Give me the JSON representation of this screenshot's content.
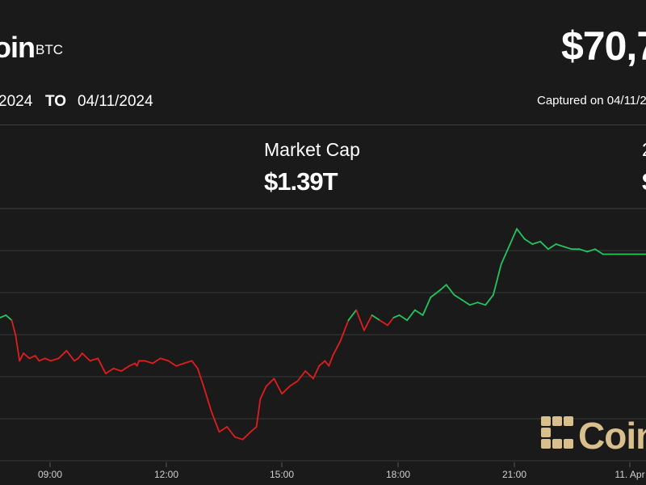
{
  "header": {
    "asset_name": "oin",
    "ticker": "BTC",
    "price": "$70,7",
    "date_from": "2024",
    "date_to_label": "TO",
    "date_to": "04/11/2024",
    "captured": "Captured on 04/11/20",
    "stat_label": "Market Cap",
    "stat_value": "$1.39T",
    "right_stat_label": "2",
    "right_stat_value": "$"
  },
  "logo": {
    "word": "Coin"
  },
  "colors": {
    "background": "#1a1a1a",
    "up": "#22c55e",
    "down": "#e11d1d",
    "grid": "#3a3a3a",
    "logo": "#d9bf8c"
  },
  "chart_data": {
    "type": "line",
    "title": "",
    "xlabel": "",
    "ylabel": "",
    "x_ticks": [
      "09:00",
      "12:00",
      "15:00",
      "18:00",
      "21:00",
      "11. Apr"
    ],
    "y_ticks_shown": false,
    "grid": true,
    "description_of_color": "segments colored green when above the period's opening level, red when below",
    "y_units": "relative price index (no axis labels shown)",
    "ylim": [
      0,
      100
    ],
    "x": [
      0,
      0.3,
      0.6,
      0.8,
      1.0,
      1.2,
      1.5,
      1.8,
      2.0,
      2.3,
      2.6,
      3.0,
      3.4,
      3.8,
      4.0,
      4.2,
      4.6,
      5.0,
      5.4,
      5.8,
      6.2,
      6.6,
      6.9,
      7.0,
      7.1,
      7.4,
      7.8,
      8.2,
      8.6,
      9.0,
      9.4,
      9.8,
      10.1,
      10.4,
      10.8,
      11.2,
      11.6,
      12.0,
      12.4,
      12.8,
      13.1,
      13.3,
      13.6,
      14.0,
      14.4,
      14.8,
      15.2,
      15.6,
      16.0,
      16.3,
      16.6,
      16.8,
      17.0,
      17.4,
      17.8,
      18.2,
      18.6,
      19.0,
      19.4,
      19.8,
      20.1,
      20.4,
      20.8,
      21.2,
      21.6,
      22.0,
      22.5,
      22.8,
      23.2,
      23.6,
      24.0,
      24.4,
      24.8,
      25.2,
      25.6,
      26.0,
      26.4,
      26.8,
      27.2,
      27.6,
      28.0,
      28.4,
      28.8,
      29.2,
      29.6,
      30.0,
      30.4,
      30.8,
      31.2,
      31.6,
      32.0,
      32.4,
      32.8,
      33.0
    ],
    "values": [
      57,
      58,
      56,
      50,
      40,
      43,
      41,
      42,
      40,
      41,
      40,
      41,
      44,
      40,
      41,
      43,
      40,
      41,
      35,
      37,
      36,
      38,
      39,
      38,
      40,
      40,
      39,
      41,
      40,
      38,
      39,
      40,
      37,
      30,
      20,
      12,
      14,
      10,
      9,
      12,
      14,
      25,
      30,
      33,
      27,
      30,
      32,
      36,
      33,
      38,
      40,
      38,
      42,
      48,
      56,
      60,
      52,
      58,
      56,
      54,
      57,
      58,
      56,
      60,
      58,
      65,
      68,
      70,
      66,
      64,
      62,
      63,
      62,
      66,
      78,
      85,
      92,
      88,
      86,
      87,
      84,
      86,
      85,
      84,
      84,
      83,
      84,
      82,
      82,
      82,
      82,
      82,
      82,
      82
    ],
    "baseline": 57
  }
}
